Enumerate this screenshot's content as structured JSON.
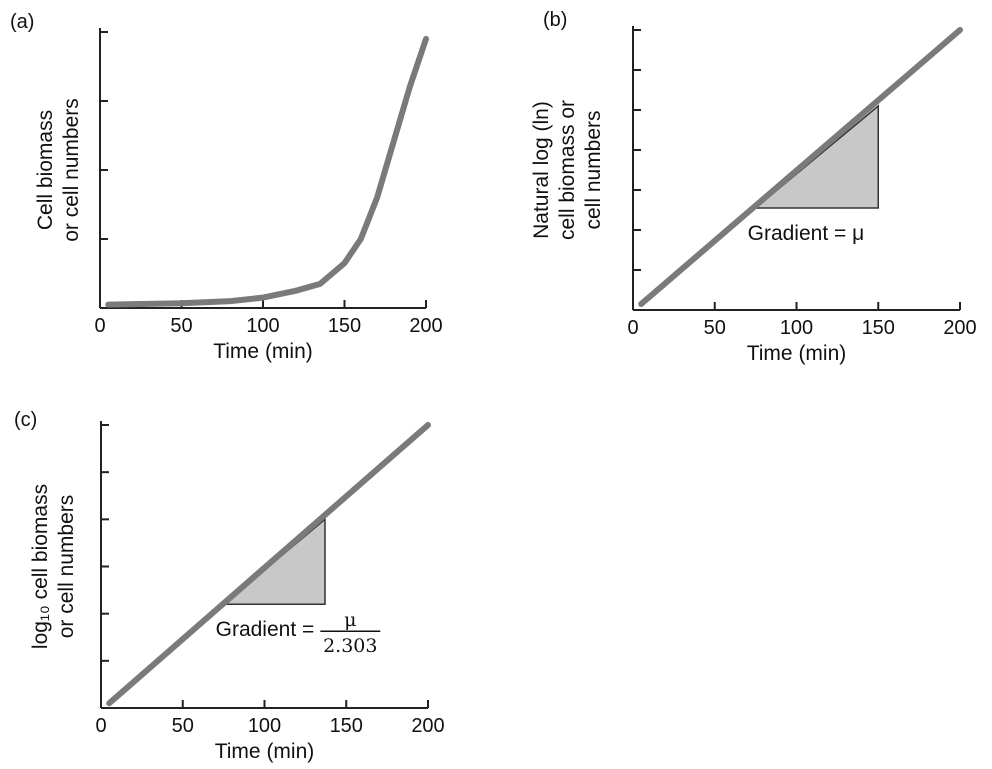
{
  "colors": {
    "curve": "#7a7a7a",
    "triangle_fill": "#c8c8c8"
  },
  "chart_data": [
    {
      "type": "line",
      "panel_label": "(a)",
      "title": "",
      "xlabel": "Time (min)",
      "ylabel_lines": [
        "Cell biomass",
        "or cell numbers"
      ],
      "xlim": [
        0,
        200
      ],
      "ylim": [
        0,
        4
      ],
      "x_ticks": [
        0,
        50,
        100,
        150,
        200
      ],
      "x_tick_labels": [
        "0",
        "50",
        "100",
        "150",
        "200"
      ],
      "y_ticks": [
        1,
        2,
        3,
        4
      ],
      "y_tick_labels": [],
      "series": [
        {
          "x": [
            5,
            50,
            80,
            100,
            120,
            135,
            150,
            160,
            170,
            180,
            190,
            200
          ],
          "y": [
            0.05,
            0.07,
            0.1,
            0.15,
            0.25,
            0.35,
            0.65,
            1.0,
            1.6,
            2.4,
            3.2,
            3.9
          ]
        }
      ]
    },
    {
      "type": "line",
      "panel_label": "(b)",
      "title": "",
      "xlabel": "Time (min)",
      "ylabel_lines": [
        "Natural log (ln)",
        "cell biomass or",
        "cell numbers"
      ],
      "xlim": [
        0,
        200
      ],
      "ylim": [
        0,
        7
      ],
      "x_ticks": [
        0,
        50,
        100,
        150,
        200
      ],
      "x_tick_labels": [
        "0",
        "50",
        "100",
        "150",
        "200"
      ],
      "y_ticks": [
        1,
        2,
        3,
        4,
        5,
        6,
        7
      ],
      "y_tick_labels": [],
      "series": [
        {
          "x": [
            5,
            200
          ],
          "y": [
            0.15,
            7.0
          ]
        }
      ],
      "gradient_triangle": {
        "x1": 75,
        "x2": 150,
        "y_low": 2.55,
        "y_high": 5.1,
        "label": "Gradient = μ"
      }
    },
    {
      "type": "line",
      "panel_label": "(c)",
      "title": "",
      "xlabel": "Time (min)",
      "ylabel_lines": [
        "log₁₀ cell biomass",
        "or cell numbers"
      ],
      "xlim": [
        0,
        200
      ],
      "ylim": [
        0,
        6
      ],
      "x_ticks": [
        0,
        50,
        100,
        150,
        200
      ],
      "x_tick_labels": [
        "0",
        "50",
        "100",
        "150",
        "200"
      ],
      "y_ticks": [
        1,
        2,
        3,
        4,
        5,
        6
      ],
      "y_tick_labels": [],
      "series": [
        {
          "x": [
            5,
            200
          ],
          "y": [
            0.1,
            6.0
          ]
        }
      ],
      "gradient_triangle": {
        "x1": 75,
        "x2": 137,
        "y_low": 2.2,
        "y_high": 4.0,
        "label": "Gradient =",
        "fraction": {
          "numerator": "μ",
          "denominator": "2.303"
        }
      }
    }
  ]
}
